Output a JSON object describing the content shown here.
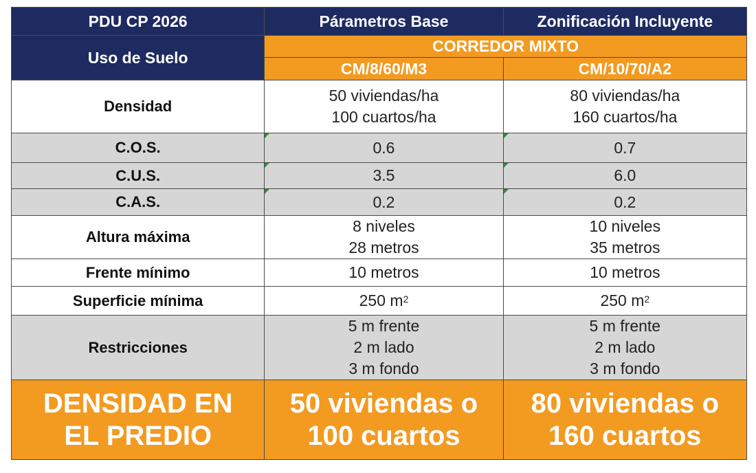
{
  "header": {
    "col1": "PDU CP 2026",
    "col2": "Párametros Base",
    "col3": "Zonificación Incluyente"
  },
  "subheader": {
    "land_use": "Uso de Suelo",
    "corridor": "CORREDOR MIXTO",
    "code_base": "CM/8/60/M3",
    "code_incl": "CM/10/70/A2"
  },
  "rows": [
    {
      "label": "Densidad",
      "base": [
        "50 viviendas/ha",
        "100 cuartos/ha"
      ],
      "incl": [
        "80 viviendas/ha",
        "160 cuartos/ha"
      ]
    },
    {
      "label": "C.O.S.",
      "base": [
        "0.6"
      ],
      "incl": [
        "0.7"
      ]
    },
    {
      "label": "C.U.S.",
      "base": [
        "3.5"
      ],
      "incl": [
        "6.0"
      ]
    },
    {
      "label": "C.A.S.",
      "base": [
        "0.2"
      ],
      "incl": [
        "0.2"
      ]
    },
    {
      "label": "Altura máxima",
      "base": [
        "8 niveles",
        "28 metros"
      ],
      "incl": [
        "10 niveles",
        "35 metros"
      ]
    },
    {
      "label": "Frente mínimo",
      "base": [
        "10 metros"
      ],
      "incl": [
        "10 metros"
      ]
    },
    {
      "label": "Superficie mínima",
      "base": [
        "250 m"
      ],
      "incl": [
        "250 m"
      ],
      "unit_sup": "2"
    },
    {
      "label": "Restricciones",
      "base": [
        "5 m frente",
        "2 m lado",
        "3 m fondo"
      ],
      "incl": [
        "5 m frente",
        "2 m lado",
        "3 m fondo"
      ]
    }
  ],
  "footer": {
    "label": [
      "DENSIDAD EN",
      "EL PREDIO"
    ],
    "base": [
      "50 viviendas o",
      "100 cuartos"
    ],
    "incl": [
      "80 viviendas o",
      "160 cuartos"
    ]
  }
}
